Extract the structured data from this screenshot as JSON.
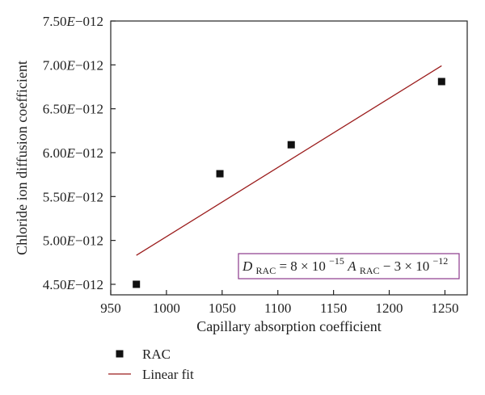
{
  "chart_data": {
    "type": "scatter",
    "xlabel": "Capillary absorption coefficient",
    "ylabel": "Chloride ion diffusion coefficient",
    "xlim": [
      950,
      1270
    ],
    "ylim": [
      4.38e-12,
      7.5e-12
    ],
    "x_ticks": [
      950,
      1000,
      1050,
      1100,
      1150,
      1200,
      1250
    ],
    "x_tick_labels": [
      "950",
      "1000",
      "1050",
      "1100",
      "1150",
      "1200",
      "1250"
    ],
    "y_ticks": [
      4.5e-12,
      5e-12,
      5.5e-12,
      6e-12,
      6.5e-12,
      7e-12,
      7.5e-12
    ],
    "y_tick_labels": [
      "4.50E−012",
      "5.00E−012",
      "5.50E−012",
      "6.00E−012",
      "6.50E−012",
      "7.00E−012",
      "7.50E−012"
    ],
    "series": [
      {
        "name": "RAC",
        "kind": "scatter",
        "color": "#111111",
        "x": [
          973,
          1048,
          1112,
          1247
        ],
        "y": [
          4.5e-12,
          5.76e-12,
          6.09e-12,
          6.81e-12
        ]
      },
      {
        "name": "Linear fit",
        "kind": "line",
        "color": "#9b1c1c",
        "x": [
          973,
          1247
        ],
        "y": [
          4.83e-12,
          6.99e-12
        ]
      }
    ],
    "annotation": {
      "D": "D",
      "D_sub": "RAC",
      "eq1": " = 8 × 10",
      "exp1": "−15",
      "A": " A",
      "A_sub": "RAC",
      "eq2": " − 3 × 10",
      "exp2": "−12",
      "border_color": "#8b3a8b"
    },
    "legend": {
      "placement": "bottom-left",
      "items": [
        {
          "label": "RAC",
          "marker": "square",
          "color": "#111111"
        },
        {
          "label": "Linear fit",
          "marker": "line",
          "color": "#9b1c1c"
        }
      ]
    }
  }
}
